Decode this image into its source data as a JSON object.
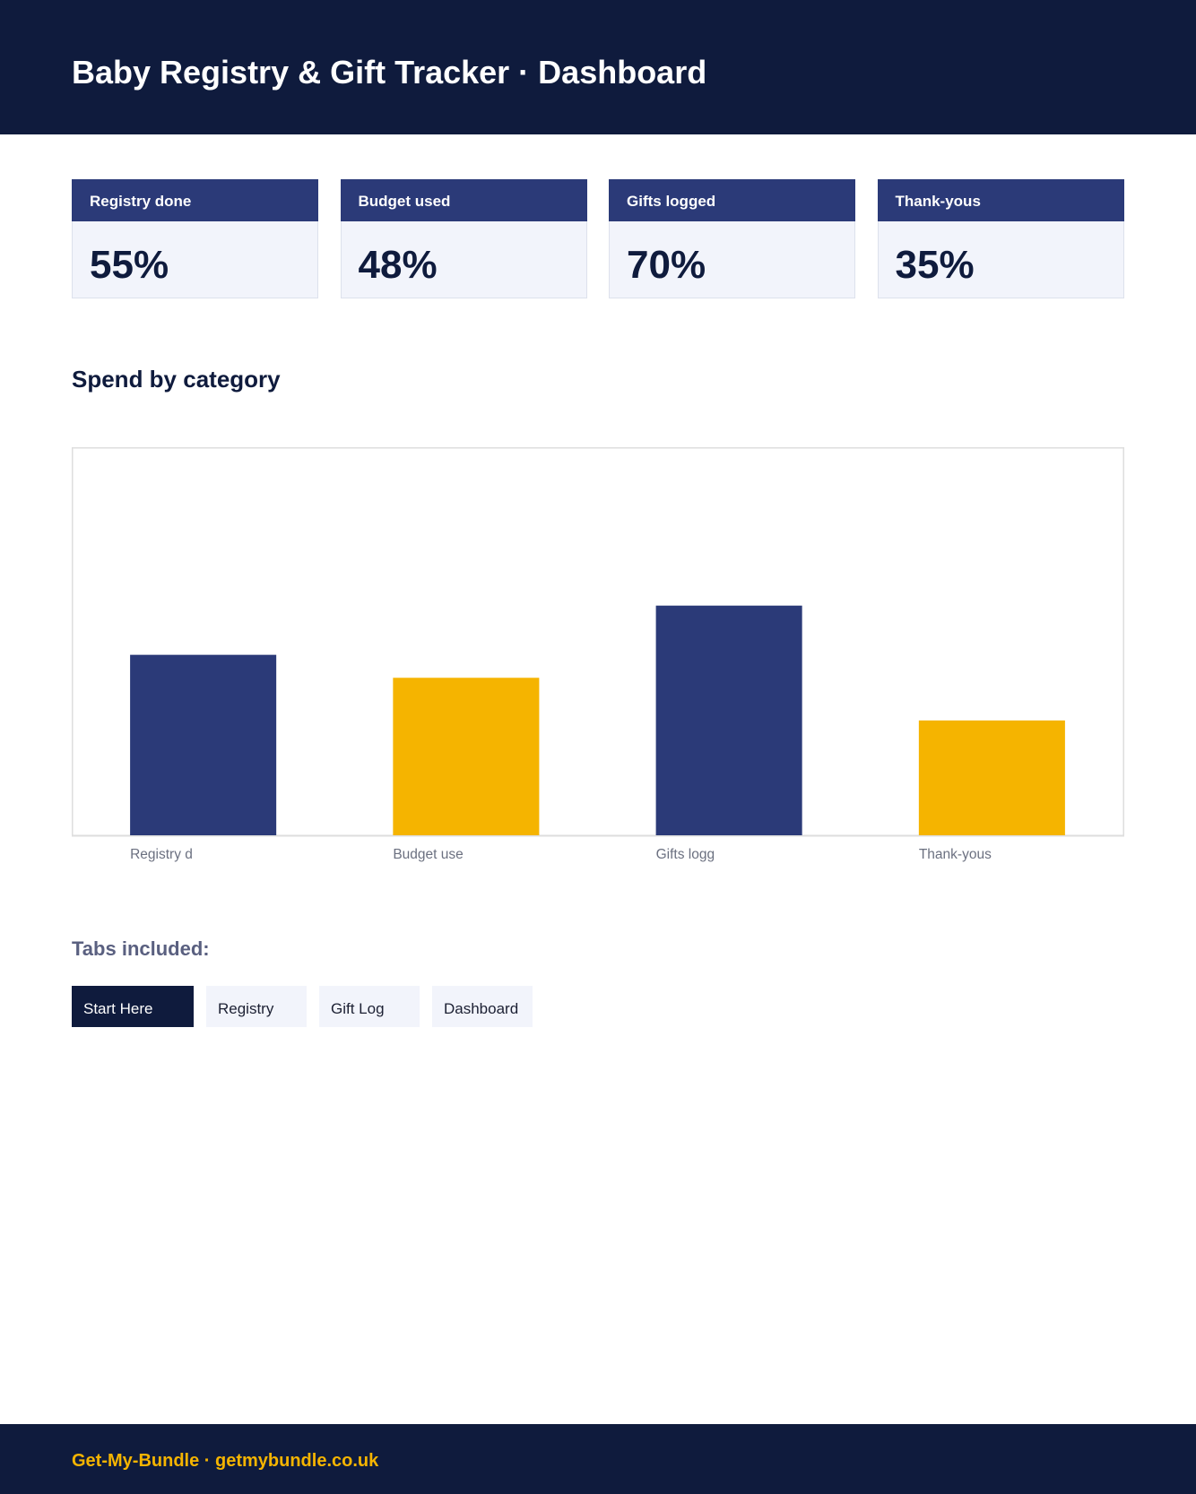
{
  "header": {
    "title": "Baby Registry & Gift Tracker · Dashboard"
  },
  "kpis": [
    {
      "label": "Registry done",
      "value": "55%"
    },
    {
      "label": "Budget used",
      "value": "48%"
    },
    {
      "label": "Gifts logged",
      "value": "70%"
    },
    {
      "label": "Thank-yous",
      "value": "35%"
    }
  ],
  "chart_data": {
    "type": "bar",
    "title": "Spend by category",
    "categories": [
      "Registry d",
      "Budget use",
      "Gifts logg",
      "Thank-yous"
    ],
    "values": [
      55,
      48,
      70,
      35
    ],
    "colors": [
      "#2b3a78",
      "#f5b400",
      "#2b3a78",
      "#f5b400"
    ],
    "ylim": [
      0,
      118
    ]
  },
  "tabs": {
    "heading": "Tabs included:",
    "items": [
      "Start Here",
      "Registry",
      "Gift Log",
      "Dashboard"
    ],
    "active": 0
  },
  "footer": {
    "text": "Get-My-Bundle · getmybundle.co.uk"
  }
}
